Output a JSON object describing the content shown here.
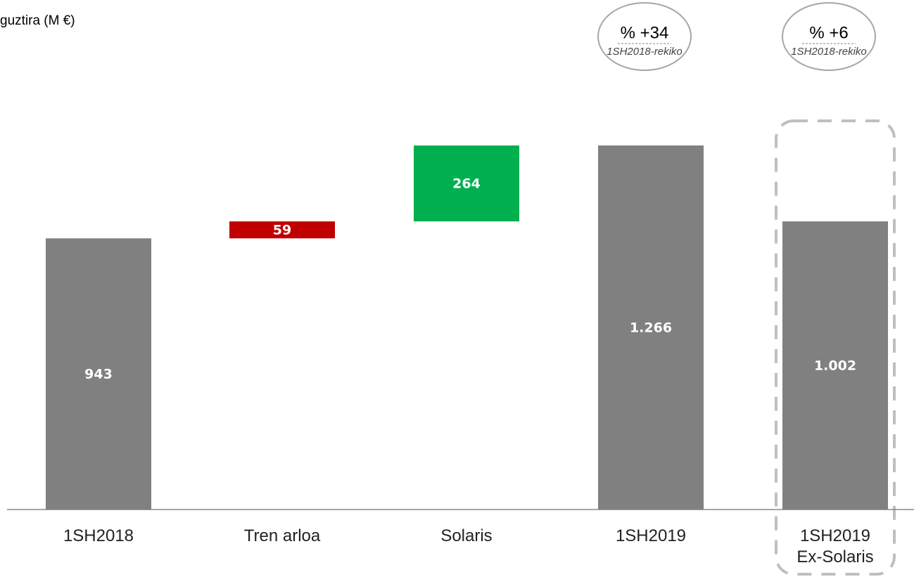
{
  "chart_data": {
    "type": "waterfall",
    "title": "guztira (M €)",
    "categories": [
      "1SH2018",
      "Tren arloa",
      "Solaris",
      "1SH2019",
      "1SH2019\nEx-Solaris"
    ],
    "values": [
      943,
      59,
      264,
      1266,
      1002
    ],
    "value_labels": [
      "943",
      "59",
      "264",
      "1.266",
      "1.002"
    ],
    "measures": [
      "absolute",
      "relative",
      "relative",
      "total",
      "total"
    ],
    "colors": [
      "#808080",
      "#c00000",
      "#00b050",
      "#808080",
      "#808080"
    ],
    "annotations": [
      {
        "category": 3,
        "text": "% +34",
        "subtext": "1SH2018-rekiko"
      },
      {
        "category": 4,
        "text": "% +6",
        "subtext": "1SH2018-rekiko"
      }
    ]
  }
}
